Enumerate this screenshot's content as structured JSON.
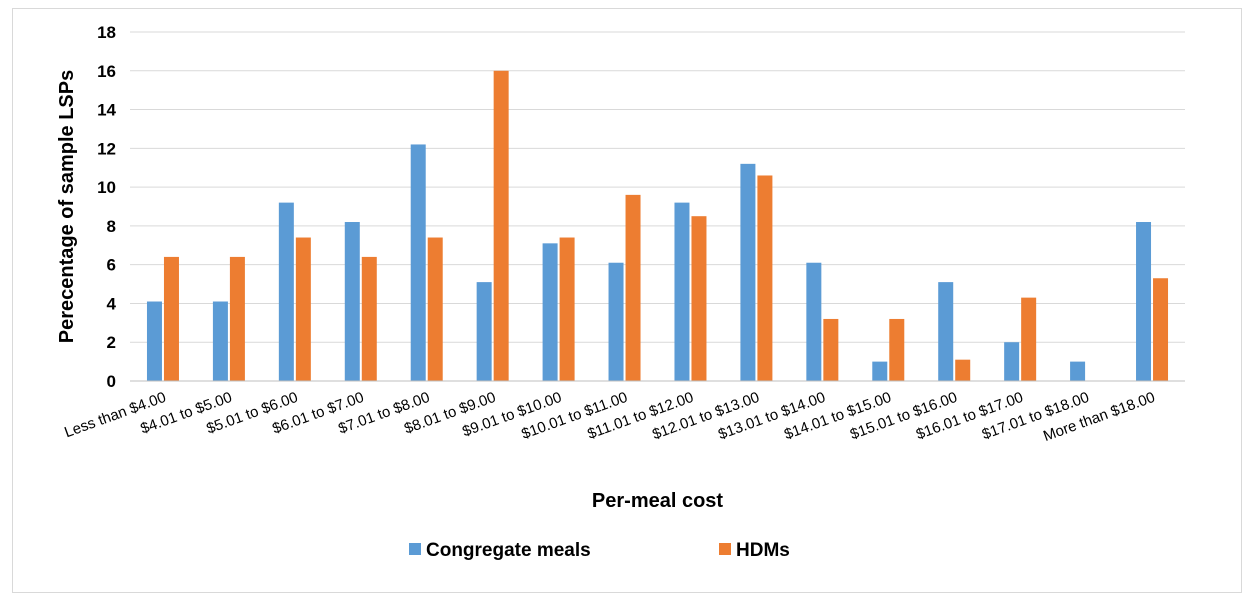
{
  "chart_data": {
    "type": "bar",
    "xlabel": "Per-meal cost",
    "ylabel": "Perecentage of sample LSPs",
    "ylim": [
      0,
      18
    ],
    "yticks": [
      0,
      2,
      4,
      6,
      8,
      10,
      12,
      14,
      16,
      18
    ],
    "grid": true,
    "legend_position": "bottom",
    "categories": [
      "Less than $4.00",
      "$4.01 to $5.00",
      "$5.01 to $6.00",
      "$6.01 to $7.00",
      "$7.01 to $8.00",
      "$8.01 to $9.00",
      "$9.01 to $10.00",
      "$10.01 to $11.00",
      "$11.01 to $12.00",
      "$12.01 to $13.00",
      "$13.01 to $14.00",
      "$14.01 to $15.00",
      "$15.01 to $16.00",
      "$16.01 to $17.00",
      "$17.01 to $18.00",
      "More than $18.00"
    ],
    "series": [
      {
        "name": "Congregate meals",
        "color": "#5b9bd5",
        "values": [
          4.1,
          4.1,
          9.2,
          8.2,
          12.2,
          5.1,
          7.1,
          6.1,
          9.2,
          11.2,
          6.1,
          1.0,
          5.1,
          2.0,
          1.0,
          8.2
        ]
      },
      {
        "name": "HDMs",
        "color": "#ed7d31",
        "values": [
          6.4,
          6.4,
          7.4,
          6.4,
          7.4,
          16.0,
          7.4,
          9.6,
          8.5,
          10.6,
          3.2,
          3.2,
          1.1,
          4.3,
          0,
          5.3
        ]
      }
    ]
  }
}
